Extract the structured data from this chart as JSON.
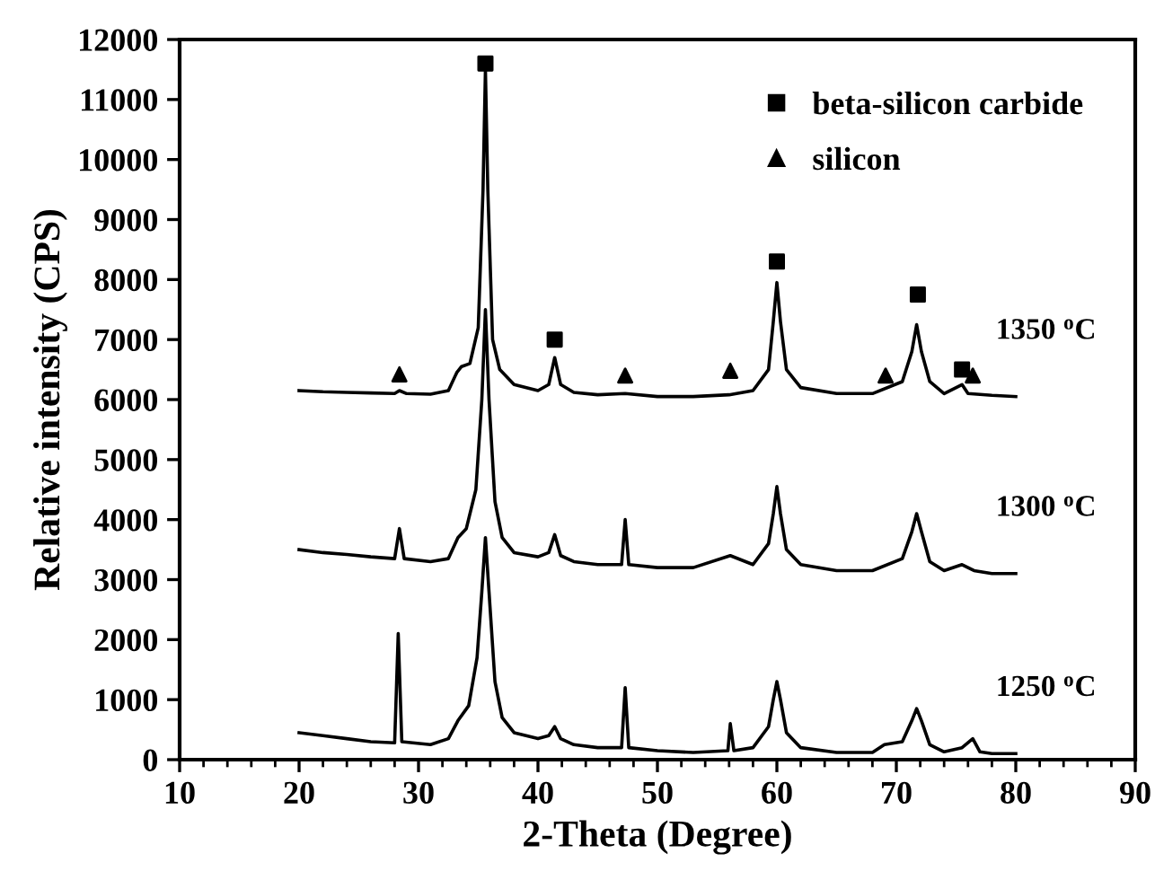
{
  "chart_data": {
    "type": "line",
    "xlabel": "2-Theta (Degree)",
    "ylabel": "Relative intensity (CPS)",
    "xlim": [
      10,
      90
    ],
    "ylim": [
      0,
      12000
    ],
    "xticks": [
      10,
      {
        "value": 12,
        "label": null
      },
      {
        "value": 14,
        "label": null
      },
      {
        "value": 16,
        "label": null
      },
      {
        "value": 18,
        "label": null
      },
      20,
      {
        "value": 22,
        "label": null
      },
      {
        "value": 24,
        "label": null
      },
      {
        "value": 26,
        "label": null
      },
      {
        "value": 28,
        "label": null
      },
      30,
      {
        "value": 32,
        "label": null
      },
      {
        "value": 34,
        "label": null
      },
      {
        "value": 36,
        "label": null
      },
      {
        "value": 38,
        "label": null
      },
      40,
      {
        "value": 42,
        "label": null
      },
      {
        "value": 44,
        "label": null
      },
      {
        "value": 46,
        "label": null
      },
      {
        "value": 48,
        "label": null
      },
      50,
      {
        "value": 52,
        "label": null
      },
      {
        "value": 54,
        "label": null
      },
      {
        "value": 56,
        "label": null
      },
      {
        "value": 58,
        "label": null
      },
      60,
      {
        "value": 62,
        "label": null
      },
      {
        "value": 64,
        "label": null
      },
      {
        "value": 66,
        "label": null
      },
      {
        "value": 68,
        "label": null
      },
      70,
      {
        "value": 72,
        "label": null
      },
      {
        "value": 74,
        "label": null
      },
      {
        "value": 76,
        "label": null
      },
      {
        "value": 78,
        "label": null
      },
      80,
      {
        "value": 82,
        "label": null
      },
      {
        "value": 84,
        "label": null
      },
      {
        "value": 86,
        "label": null
      },
      {
        "value": 88,
        "label": null
      },
      90
    ],
    "yticks": [
      0,
      1000,
      2000,
      3000,
      4000,
      5000,
      6000,
      7000,
      8000,
      9000,
      10000,
      11000,
      12000
    ],
    "grid": false,
    "legend": "top right",
    "line_style": "solid",
    "series": [
      {
        "color": "#000000",
        "marker": "none",
        "x": [
          20,
          22,
          24,
          26,
          28,
          28.4,
          29,
          31,
          32.5,
          33.2,
          33.6,
          34.3,
          35,
          35.4,
          35.6,
          35.8,
          36.2,
          36.8,
          38,
          40,
          40.9,
          41.4,
          41.9,
          43,
          45,
          47.3,
          50,
          53,
          56,
          58,
          59.3,
          59.7,
          60,
          60.3,
          60.8,
          62,
          65,
          68,
          70.5,
          71.3,
          71.7,
          72.1,
          72.8,
          74,
          75.5,
          76,
          78,
          80
        ],
        "values": [
          6150,
          6130,
          6120,
          6110,
          6100,
          6150,
          6100,
          6090,
          6150,
          6450,
          6550,
          6600,
          7200,
          9500,
          11500,
          9500,
          7000,
          6500,
          6250,
          6150,
          6250,
          6700,
          6250,
          6120,
          6080,
          6100,
          6050,
          6050,
          6080,
          6150,
          6500,
          7300,
          7950,
          7300,
          6500,
          6200,
          6100,
          6100,
          6300,
          6800,
          7250,
          6800,
          6300,
          6100,
          6250,
          6100,
          6070,
          6050
        ]
      },
      {
        "color": "#000000",
        "marker": "none",
        "x": [
          20,
          22,
          24,
          26,
          28,
          28.4,
          28.8,
          31,
          32.5,
          33.3,
          34,
          34.8,
          35.3,
          35.6,
          35.9,
          36.4,
          37,
          38,
          40,
          40.9,
          41.4,
          41.9,
          43,
          45,
          47,
          47.3,
          47.6,
          50,
          53,
          56.1,
          58,
          59.3,
          59.7,
          60,
          60.3,
          60.8,
          62,
          65,
          68,
          70.5,
          71.3,
          71.7,
          72.1,
          72.8,
          74,
          75.5,
          76.5,
          78,
          80
        ],
        "values": [
          3500,
          3450,
          3420,
          3380,
          3350,
          3850,
          3350,
          3300,
          3350,
          3700,
          3850,
          4500,
          6000,
          7500,
          6000,
          4300,
          3700,
          3450,
          3380,
          3450,
          3750,
          3400,
          3300,
          3250,
          3250,
          4000,
          3250,
          3200,
          3200,
          3400,
          3250,
          3600,
          4100,
          4550,
          4100,
          3500,
          3250,
          3150,
          3150,
          3350,
          3800,
          4100,
          3800,
          3300,
          3150,
          3250,
          3150,
          3100,
          3100
        ]
      },
      {
        "color": "#000000",
        "marker": "none",
        "x": [
          20,
          22,
          24,
          26,
          28,
          28.3,
          28.6,
          31,
          32.5,
          33.3,
          34.2,
          34.9,
          35.3,
          35.6,
          35.9,
          36.4,
          37,
          38,
          40,
          40.9,
          41.4,
          41.9,
          43,
          45,
          47,
          47.3,
          47.6,
          50,
          53,
          55.9,
          56.1,
          56.4,
          58,
          59.3,
          59.7,
          60,
          60.3,
          60.8,
          62,
          65,
          68,
          69,
          70.5,
          71.3,
          71.7,
          72.1,
          72.8,
          74,
          75.5,
          76.4,
          77,
          78,
          80
        ],
        "values": [
          450,
          400,
          350,
          300,
          280,
          2100,
          300,
          250,
          350,
          650,
          900,
          1700,
          2800,
          3700,
          2800,
          1300,
          700,
          450,
          350,
          400,
          550,
          350,
          250,
          200,
          200,
          1200,
          200,
          150,
          120,
          150,
          600,
          150,
          200,
          550,
          1000,
          1300,
          1000,
          450,
          200,
          120,
          120,
          250,
          300,
          650,
          850,
          650,
          250,
          130,
          200,
          350,
          130,
          100,
          100
        ]
      },
      {
        "type": "scatter",
        "name": "beta-silicon carbide",
        "color": "#000000",
        "marker": "square",
        "x": [
          35.6,
          41.4,
          60,
          71.8,
          75.5
        ],
        "values": [
          11600,
          7000,
          8300,
          7750,
          6500
        ]
      },
      {
        "type": "scatter",
        "name": "silicon",
        "color": "#000000",
        "marker": "triangle",
        "x": [
          28.4,
          47.3,
          56.1,
          69.1,
          76.4
        ],
        "values": [
          6420,
          6400,
          6480,
          6400,
          6400
        ]
      }
    ],
    "annotations": [
      "1350 $^{o}$C",
      "1300 $^{o}$C",
      "1250 $^{o}$C"
    ]
  }
}
